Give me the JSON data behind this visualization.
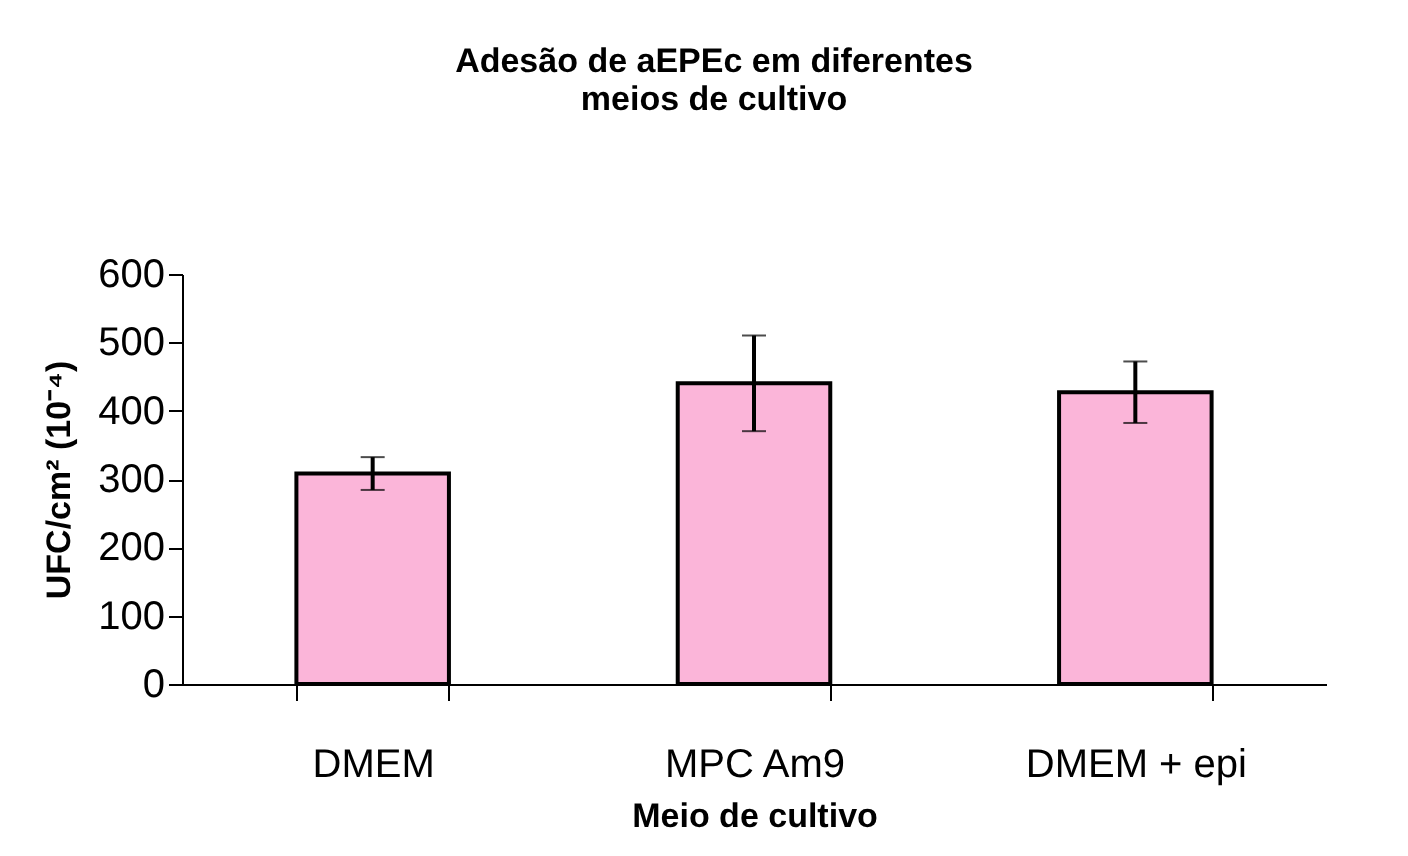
{
  "chart_data": {
    "type": "bar",
    "title": "Adesão de aEPEc em diferentes meios de cultivo",
    "xlabel": "Meio de cultivo",
    "ylabel": "UFC/cm² (10⁻⁴)",
    "categories": [
      "DMEM",
      "MPC Am9",
      "DMEM + epi"
    ],
    "values": [
      308,
      440,
      427
    ],
    "errors": [
      24,
      70,
      45
    ],
    "color": "#fbb5d9",
    "ylim": [
      0,
      600
    ],
    "yticks": [
      0,
      100,
      200,
      300,
      400,
      500,
      600
    ],
    "grid": false
  }
}
